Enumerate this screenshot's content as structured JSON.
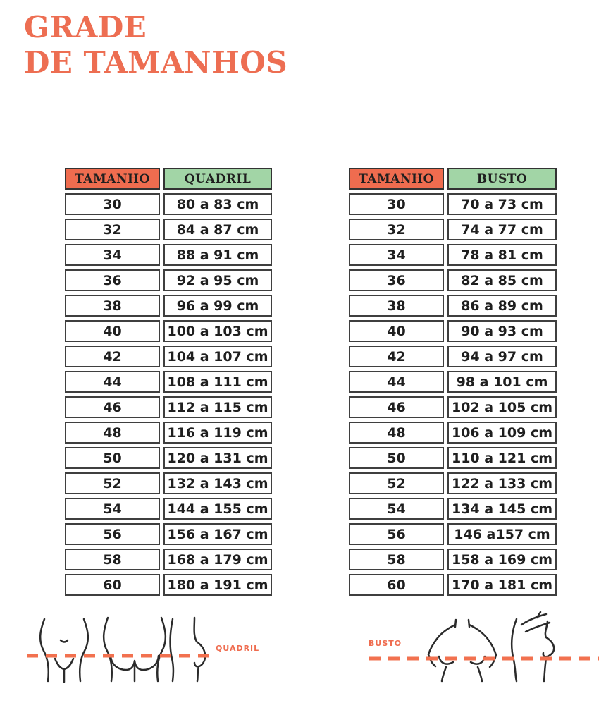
{
  "page": {
    "title_line1": "GRADE",
    "title_line2": "DE TAMANHOS"
  },
  "colors": {
    "accent_title": "#ED6E52",
    "size_header_bg": "#EF6C4F",
    "measure_header_bg": "#A2D5A6",
    "cell_border": "#3F3F3F",
    "cell_text": "#1F1F1F",
    "dash_line": "#F2714F"
  },
  "chart_data": [
    {
      "type": "table",
      "name": "quadril",
      "columns": [
        "TAMANHO",
        "QUADRIL"
      ],
      "rows": [
        [
          "30",
          "80 a 83 cm"
        ],
        [
          "32",
          "84 a 87 cm"
        ],
        [
          "34",
          "88 a 91 cm"
        ],
        [
          "36",
          "92 a 95 cm"
        ],
        [
          "38",
          "96 a 99 cm"
        ],
        [
          "40",
          "100 a 103 cm"
        ],
        [
          "42",
          "104 a 107 cm"
        ],
        [
          "44",
          "108 a 111 cm"
        ],
        [
          "46",
          "112 a 115 cm"
        ],
        [
          "48",
          "116 a 119 cm"
        ],
        [
          "50",
          "120 a 131 cm"
        ],
        [
          "52",
          "132 a 143 cm"
        ],
        [
          "54",
          "144 a 155 cm"
        ],
        [
          "56",
          "156 a 167 cm"
        ],
        [
          "58",
          "168 a 179 cm"
        ],
        [
          "60",
          "180 a 191 cm"
        ]
      ]
    },
    {
      "type": "table",
      "name": "busto",
      "columns": [
        "TAMANHO",
        "BUSTO"
      ],
      "rows": [
        [
          "30",
          "70 a 73 cm"
        ],
        [
          "32",
          "74 a 77 cm"
        ],
        [
          "34",
          "78 a 81 cm"
        ],
        [
          "36",
          "82 a 85 cm"
        ],
        [
          "38",
          "86 a 89 cm"
        ],
        [
          "40",
          "90 a 93 cm"
        ],
        [
          "42",
          "94 a 97 cm"
        ],
        [
          "44",
          "98 a 101 cm"
        ],
        [
          "46",
          "102 a 105 cm"
        ],
        [
          "48",
          "106 a 109 cm"
        ],
        [
          "50",
          "110 a 121 cm"
        ],
        [
          "52",
          "122 a 133 cm"
        ],
        [
          "54",
          "134 a 145 cm"
        ],
        [
          "56",
          "146 a157 cm"
        ],
        [
          "58",
          "158 a 169 cm"
        ],
        [
          "60",
          "170 a 181 cm"
        ]
      ]
    }
  ],
  "figures": {
    "left_label": "QUADRIL",
    "right_label": "BUSTO"
  }
}
